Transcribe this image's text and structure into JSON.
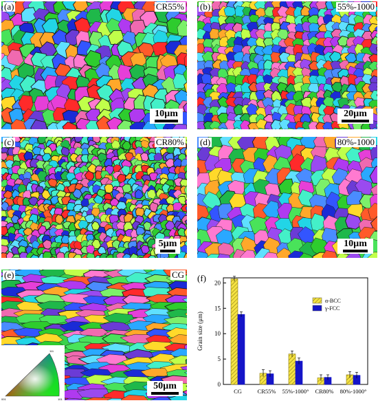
{
  "panels": [
    {
      "id": "a",
      "label": "(a)",
      "title": "CR55%",
      "scale": "10µm",
      "seed": 11,
      "texture": "deformed"
    },
    {
      "id": "b",
      "label": "(b)",
      "title": "55%-1000",
      "scale": "20µm",
      "seed": 23,
      "texture": "recrystallized-fine"
    },
    {
      "id": "c",
      "label": "(c)",
      "title": "CR80%",
      "scale": "5µm",
      "seed": 37,
      "texture": "heavily-deformed"
    },
    {
      "id": "d",
      "label": "(d)",
      "title": "80%-1000",
      "scale": "10µm",
      "seed": 41,
      "texture": "recrystallized-coarse"
    },
    {
      "id": "e",
      "label": "(e)",
      "title": "CG",
      "scale": "50µm",
      "seed": 53,
      "texture": "elongated",
      "ipf_key": {
        "corner_labels": [
          "001",
          "101",
          "111"
        ]
      }
    }
  ],
  "chart_panel_label": "(f)",
  "chart_data": {
    "type": "bar",
    "categories": [
      "CG",
      "CR55%",
      "55%-1000°",
      "CR80%",
      "80%-1000°"
    ],
    "series": [
      {
        "name": "α-BCC",
        "values": [
          20.8,
          2.2,
          6.0,
          1.3,
          1.9
        ],
        "errors": [
          0.5,
          0.7,
          0.6,
          0.6,
          0.6
        ],
        "color": "#f4e242",
        "pattern": "hatched"
      },
      {
        "name": "γ-FCC",
        "values": [
          13.8,
          2.1,
          4.6,
          1.4,
          1.8
        ],
        "errors": [
          0.5,
          0.6,
          0.6,
          0.5,
          0.6
        ],
        "color": "#1515c8",
        "pattern": "solid"
      }
    ],
    "ylabel": "Grain size (μm)",
    "xlabel": "",
    "ylim": [
      0,
      21
    ],
    "yticks": [
      0,
      5,
      10,
      15,
      20
    ],
    "legend_position": "upper-right",
    "grid": false
  }
}
